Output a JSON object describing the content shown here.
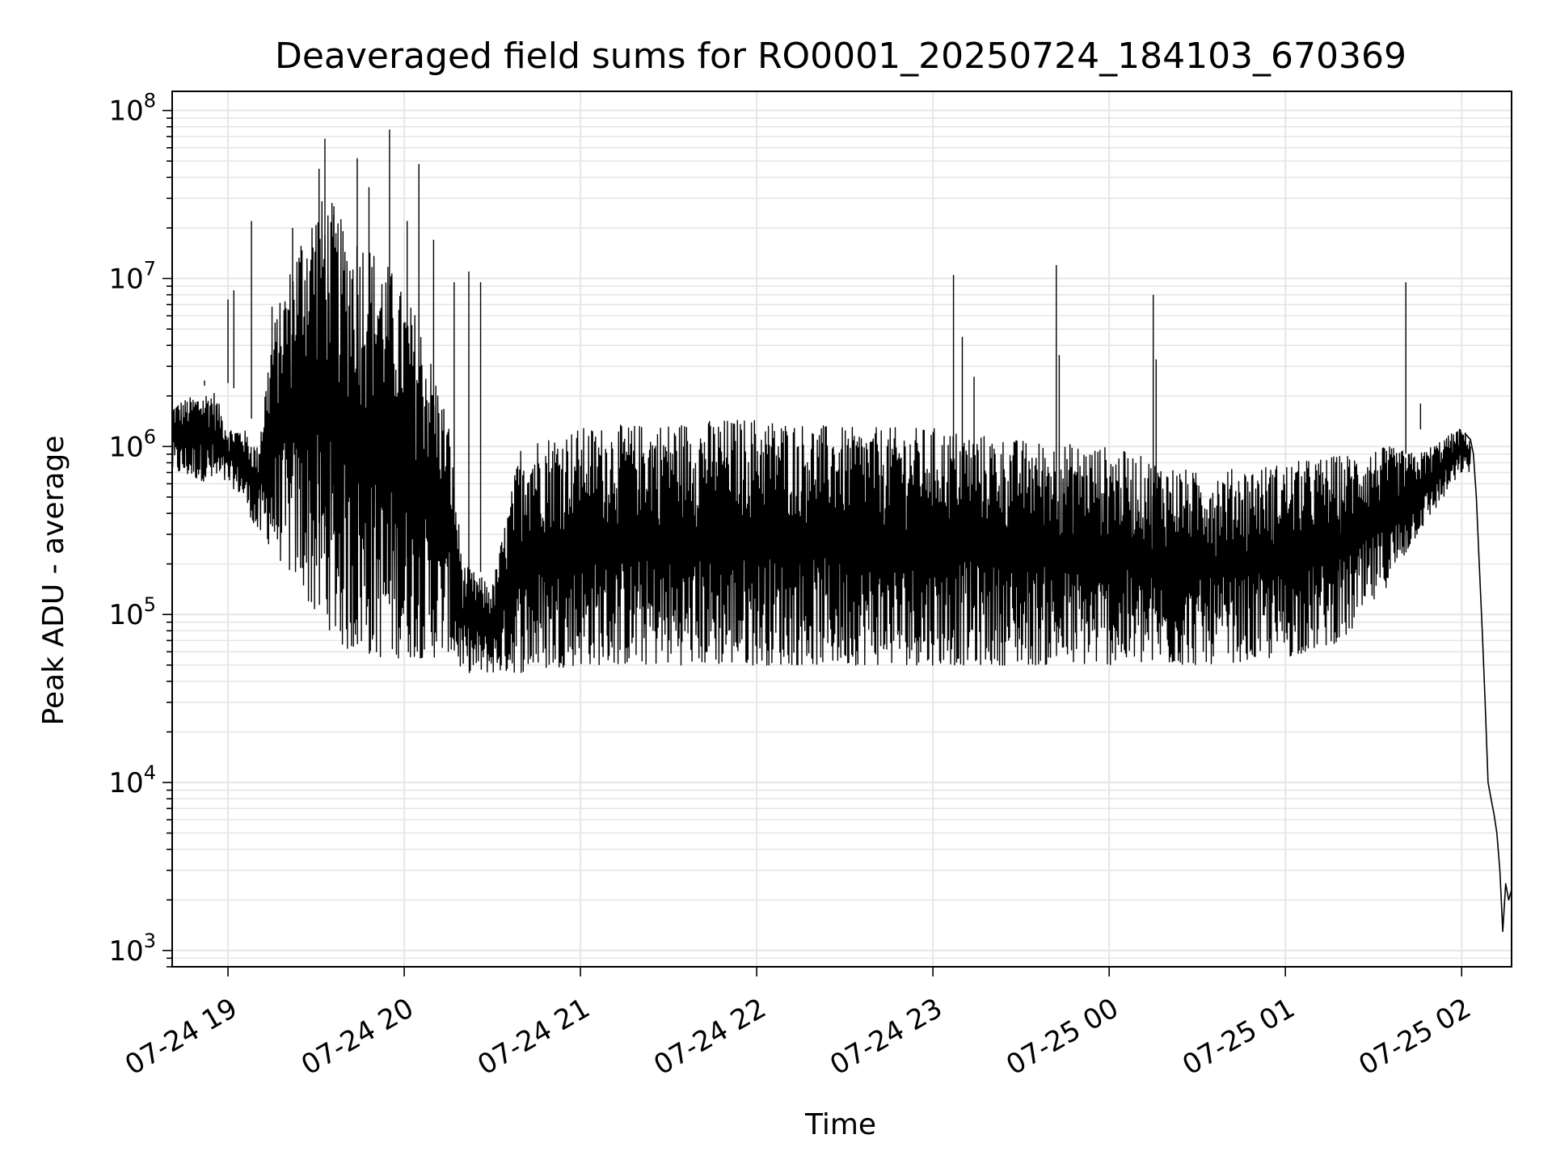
{
  "chart_data": {
    "type": "line",
    "title": "Deaveraged field sums for RO0001_20250724_184103_670369",
    "xlabel": "Time",
    "ylabel": "Peak ADU - average",
    "yscale": "log",
    "ylim": [
      800,
      130000000
    ],
    "xlim": [
      "2025-07-24 18:41",
      "2025-07-25 02:17"
    ],
    "x_ticks": [
      "07-24 19",
      "07-24 20",
      "07-24 21",
      "07-24 22",
      "07-24 23",
      "07-25 00",
      "07-25 01",
      "07-25 02"
    ],
    "y_ticks": [
      {
        "base": "10",
        "exp": "3",
        "value": 1000
      },
      {
        "base": "10",
        "exp": "4",
        "value": 10000
      },
      {
        "base": "10",
        "exp": "5",
        "value": 100000
      },
      {
        "base": "10",
        "exp": "6",
        "value": 1000000
      },
      {
        "base": "10",
        "exp": "7",
        "value": 10000000
      },
      {
        "base": "10",
        "exp": "8",
        "value": 100000000
      }
    ],
    "grid": true,
    "line_color": "#000000",
    "grid_color": "#e6e6e6",
    "series": [
      {
        "envelope": [
          {
            "x": "2025-07-24 18:41",
            "low": 700000,
            "high": 1800000
          },
          {
            "x": "2025-07-24 18:55",
            "low": 600000,
            "high": 2200000
          },
          {
            "x": "2025-07-24 19:00",
            "low": 600000,
            "high": 1300000
          },
          {
            "x": "2025-07-24 19:05",
            "low": 500000,
            "high": 1300000
          },
          {
            "x": "2025-07-24 19:10",
            "low": 300000,
            "high": 1000000
          },
          {
            "x": "2025-07-24 19:15",
            "low": 250000,
            "high": 5000000
          },
          {
            "x": "2025-07-24 19:20",
            "low": 180000,
            "high": 10000000
          },
          {
            "x": "2025-07-24 19:25",
            "low": 150000,
            "high": 20000000
          },
          {
            "x": "2025-07-24 19:30",
            "low": 90000,
            "high": 30000000
          },
          {
            "x": "2025-07-24 19:35",
            "low": 80000,
            "high": 30000000
          },
          {
            "x": "2025-07-24 19:40",
            "low": 60000,
            "high": 20000000
          },
          {
            "x": "2025-07-24 19:45",
            "low": 60000,
            "high": 20000000
          },
          {
            "x": "2025-07-24 19:50",
            "low": 55000,
            "high": 15000000
          },
          {
            "x": "2025-07-24 19:55",
            "low": 55000,
            "high": 12000000
          },
          {
            "x": "2025-07-24 20:00",
            "low": 55000,
            "high": 8000000
          },
          {
            "x": "2025-07-24 20:05",
            "low": 55000,
            "high": 6000000
          },
          {
            "x": "2025-07-24 20:10",
            "low": 55000,
            "high": 3000000
          },
          {
            "x": "2025-07-24 20:15",
            "low": 60000,
            "high": 1500000
          },
          {
            "x": "2025-07-24 20:20",
            "low": 45000,
            "high": 200000
          },
          {
            "x": "2025-07-24 20:30",
            "low": 45000,
            "high": 150000
          },
          {
            "x": "2025-07-24 20:40",
            "low": 45000,
            "high": 1100000
          },
          {
            "x": "2025-07-24 21:00",
            "low": 50000,
            "high": 1300000
          },
          {
            "x": "2025-07-24 21:30",
            "low": 50000,
            "high": 1400000
          },
          {
            "x": "2025-07-24 22:00",
            "low": 50000,
            "high": 1500000
          },
          {
            "x": "2025-07-24 22:30",
            "low": 50000,
            "high": 1300000
          },
          {
            "x": "2025-07-24 23:00",
            "low": 50000,
            "high": 1300000
          },
          {
            "x": "2025-07-24 23:30",
            "low": 50000,
            "high": 1100000
          },
          {
            "x": "2025-07-25 00:00",
            "low": 50000,
            "high": 1000000
          },
          {
            "x": "2025-07-25 00:30",
            "low": 50000,
            "high": 700000
          },
          {
            "x": "2025-07-25 01:00",
            "low": 55000,
            "high": 800000
          },
          {
            "x": "2025-07-25 01:20",
            "low": 70000,
            "high": 900000
          },
          {
            "x": "2025-07-25 01:35",
            "low": 150000,
            "high": 1000000
          },
          {
            "x": "2025-07-25 01:45",
            "low": 300000,
            "high": 900000
          },
          {
            "x": "2025-07-25 02:00",
            "low": 700000,
            "high": 1300000
          },
          {
            "x": "2025-07-25 02:03",
            "low": 700000,
            "high": 1100000
          }
        ],
        "tail": [
          {
            "x": "2025-07-25 02:01",
            "y": 1200000
          },
          {
            "x": "2025-07-25 02:03",
            "y": 1100000
          },
          {
            "x": "2025-07-25 02:04",
            "y": 900000
          },
          {
            "x": "2025-07-25 02:05",
            "y": 500000
          },
          {
            "x": "2025-07-25 02:06",
            "y": 200000
          },
          {
            "x": "2025-07-25 02:07",
            "y": 80000
          },
          {
            "x": "2025-07-25 02:08",
            "y": 30000
          },
          {
            "x": "2025-07-25 02:09",
            "y": 10000
          },
          {
            "x": "2025-07-25 02:10",
            "y": 8000
          },
          {
            "x": "2025-07-25 02:11",
            "y": 6500
          },
          {
            "x": "2025-07-25 02:12",
            "y": 5000
          },
          {
            "x": "2025-07-25 02:13",
            "y": 3000
          },
          {
            "x": "2025-07-25 02:14",
            "y": 1300
          },
          {
            "x": "2025-07-25 02:15",
            "y": 2500
          },
          {
            "x": "2025-07-25 02:16",
            "y": 2000
          },
          {
            "x": "2025-07-25 02:17",
            "y": 2300
          }
        ],
        "spikes": [
          {
            "x": "2025-07-24 18:41",
            "y": 1800000
          },
          {
            "x": "2025-07-24 18:52",
            "y": 2300000
          },
          {
            "x": "2025-07-24 19:00",
            "y": 7500000
          },
          {
            "x": "2025-07-24 19:02",
            "y": 8500000
          },
          {
            "x": "2025-07-24 19:08",
            "y": 22000000
          },
          {
            "x": "2025-07-24 19:15",
            "y": 6800000
          },
          {
            "x": "2025-07-24 19:22",
            "y": 20000000
          },
          {
            "x": "2025-07-24 19:31",
            "y": 45000000
          },
          {
            "x": "2025-07-24 19:33",
            "y": 68000000
          },
          {
            "x": "2025-07-24 19:36",
            "y": 24000000
          },
          {
            "x": "2025-07-24 19:44",
            "y": 52000000
          },
          {
            "x": "2025-07-24 19:48",
            "y": 35000000
          },
          {
            "x": "2025-07-24 19:55",
            "y": 77000000
          },
          {
            "x": "2025-07-24 20:01",
            "y": 22000000
          },
          {
            "x": "2025-07-24 20:05",
            "y": 48000000
          },
          {
            "x": "2025-07-24 20:10",
            "y": 17000000
          },
          {
            "x": "2025-07-24 20:17",
            "y": 9500000
          },
          {
            "x": "2025-07-24 20:22",
            "y": 11000000
          },
          {
            "x": "2025-07-24 20:26",
            "y": 9500000
          },
          {
            "x": "2025-07-24 23:07",
            "y": 10500000
          },
          {
            "x": "2025-07-24 23:10",
            "y": 4500000
          },
          {
            "x": "2025-07-24 23:14",
            "y": 2600000
          },
          {
            "x": "2025-07-24 23:42",
            "y": 12000000
          },
          {
            "x": "2025-07-24 23:43",
            "y": 3500000
          },
          {
            "x": "2025-07-25 00:15",
            "y": 8000000
          },
          {
            "x": "2025-07-25 00:16",
            "y": 3300000
          },
          {
            "x": "2025-07-25 01:41",
            "y": 9500000
          },
          {
            "x": "2025-07-25 01:46",
            "y": 1800000
          }
        ]
      }
    ]
  }
}
